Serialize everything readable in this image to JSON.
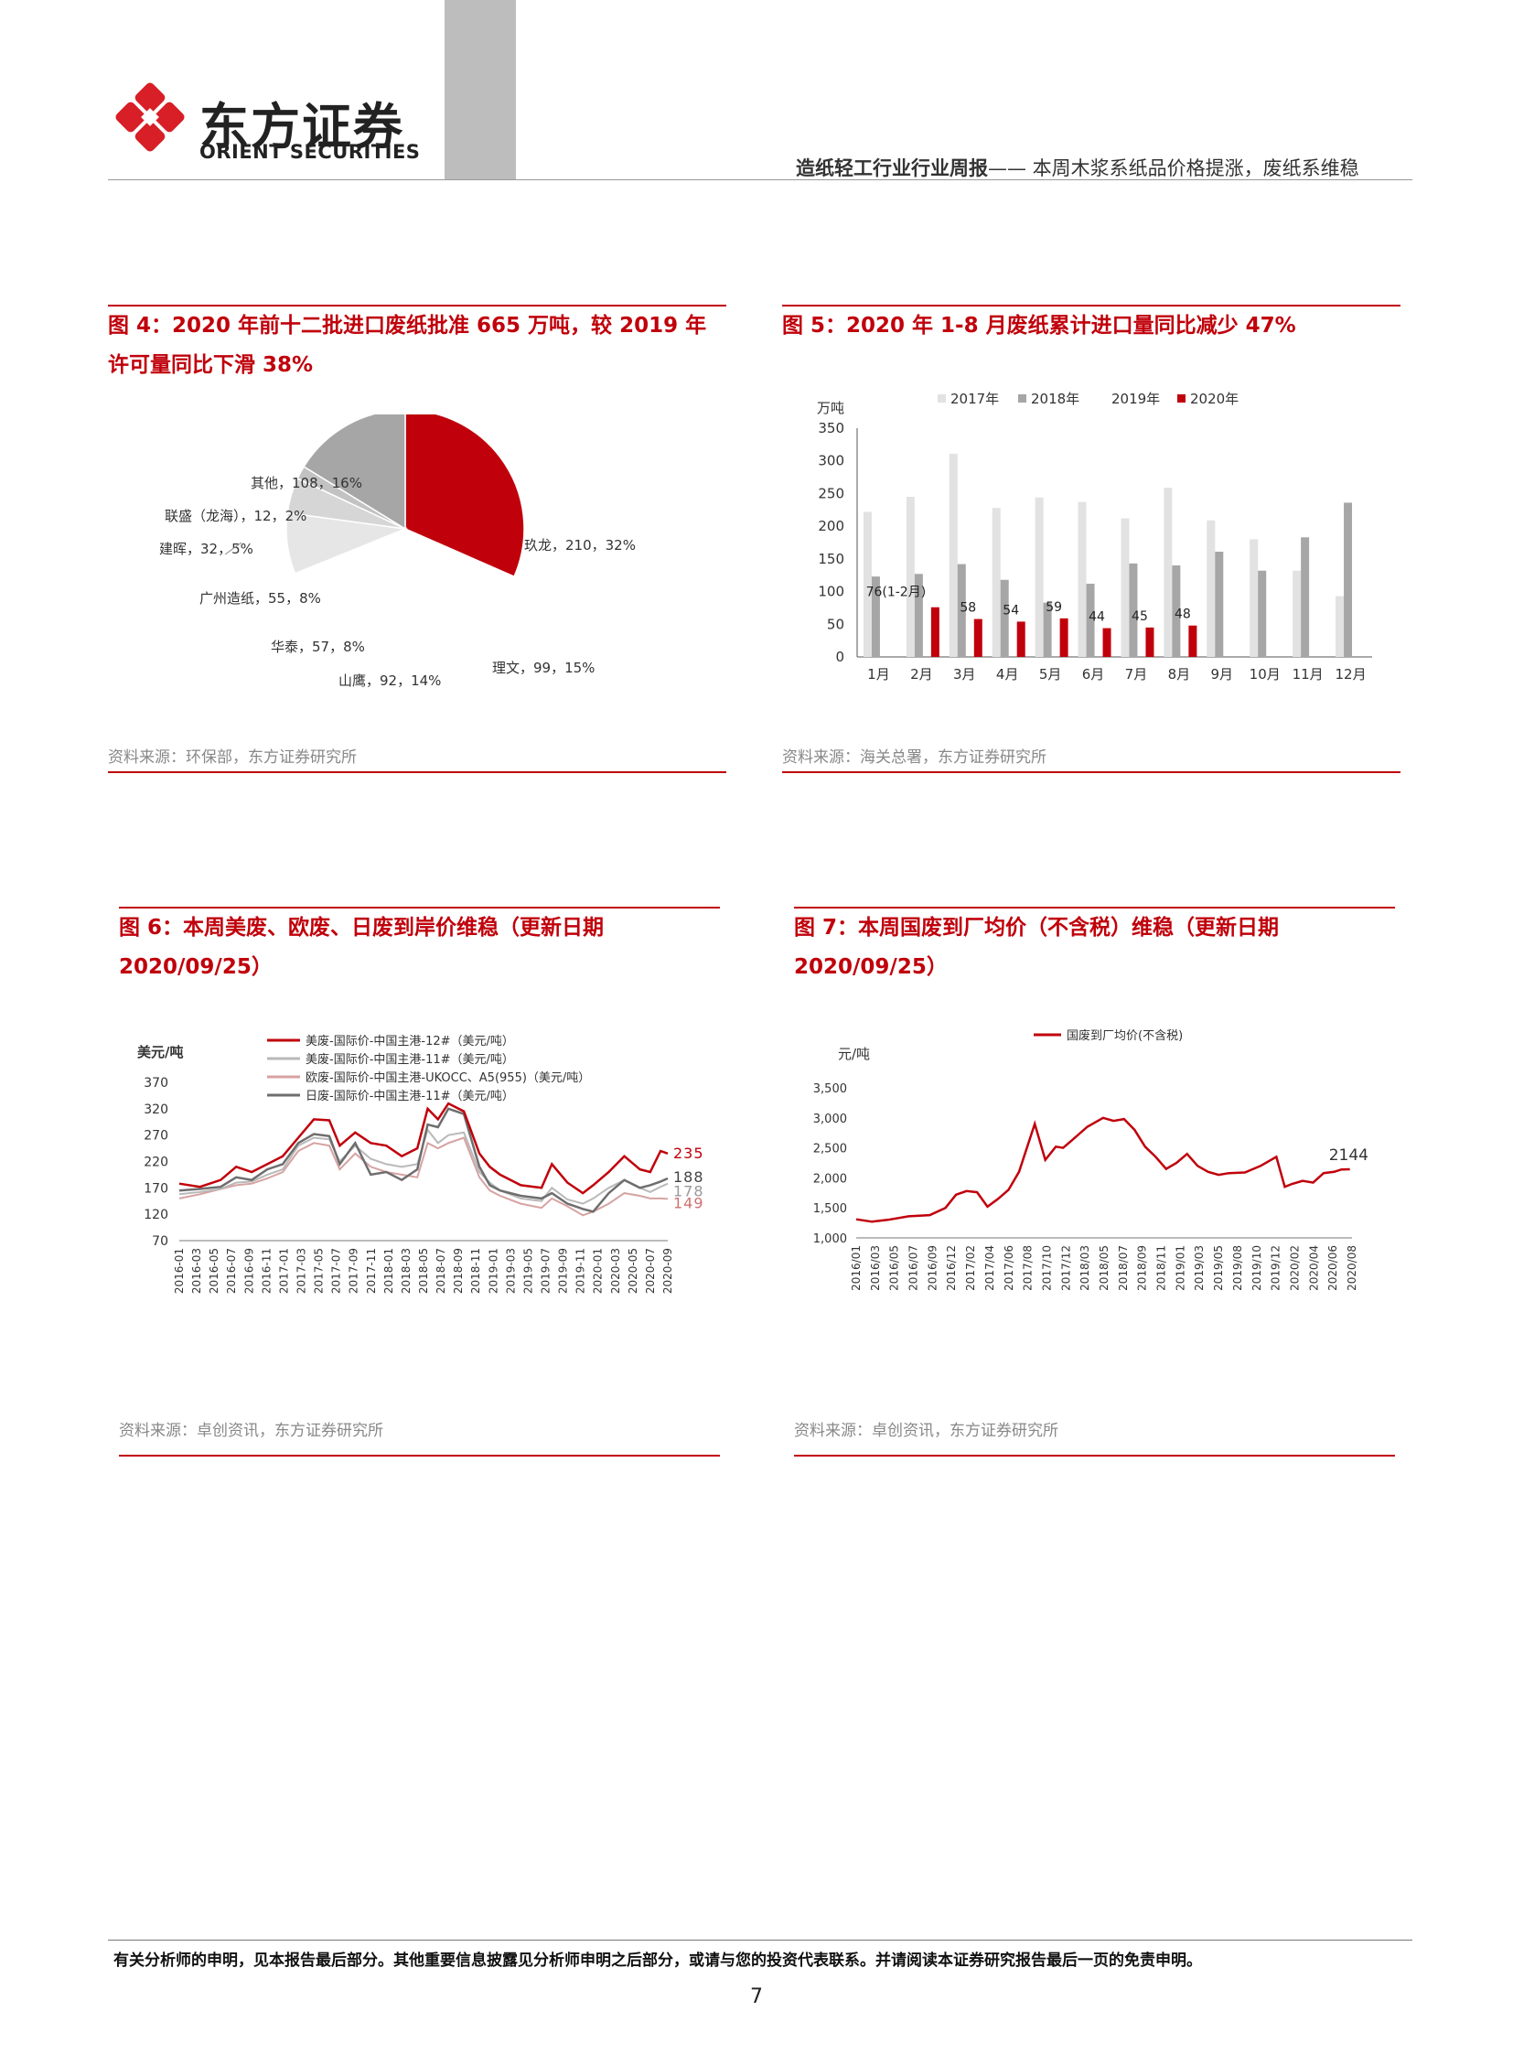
{
  "header": {
    "brand_cn": "东方证券",
    "brand_en": "ORIENT SECURITIES",
    "report_title": "造纸轻工行业行业周报",
    "report_subtitle": "—— 本周木浆系纸品价格提涨，废纸系维稳"
  },
  "figures": [
    {
      "title_line1": "图 4：2020 年前十二批进口废纸批准 665 万吨，较 2019 年",
      "title_line2": "许可量同比下滑 38%",
      "source": "资料来源：环保部，东方证券研究所"
    },
    {
      "title_line1": "图 5：2020 年 1-8 月废纸累计进口量同比减少 47%",
      "title_line2": "",
      "source": "资料来源：海关总署，东方证券研究所"
    },
    {
      "title_line1": "图 6：本周美废、欧废、日废到岸价维稳（更新日期",
      "title_line2": "2020/09/25）",
      "source": "资料来源：卓创资讯，东方证券研究所"
    },
    {
      "title_line1": "图 7：本周国废到厂均价（不含税）维稳（更新日期",
      "title_line2": "2020/09/25）",
      "source": "资料来源：卓创资讯，东方证券研究所"
    }
  ],
  "chart_data": [
    {
      "type": "pie",
      "slices": [
        {
          "label": "玖龙，210，32%",
          "value": 210,
          "pct": 32,
          "color": "#c0000b"
        },
        {
          "label": "理文，99，15%",
          "value": 99,
          "pct": 15,
          "color": "#ffffff"
        },
        {
          "label": "山鹰，92，14%",
          "value": 92,
          "pct": 14,
          "color": "#ffffff"
        },
        {
          "label": "华泰，57，8%",
          "value": 57,
          "pct": 8,
          "color": "#ffffff"
        },
        {
          "label": "广州造纸，55，8%",
          "value": 55,
          "pct": 8,
          "color": "#e6e6e6"
        },
        {
          "label": "建晖，32，5%",
          "value": 32,
          "pct": 5,
          "color": "#d6d6d6"
        },
        {
          "label": "联盛（龙海），12，2%",
          "value": 12,
          "pct": 2,
          "color": "#c2c2c2"
        },
        {
          "label": "其他，108，16%",
          "value": 108,
          "pct": 16,
          "color": "#a6a6a6"
        }
      ]
    },
    {
      "type": "bar",
      "ylabel": "万吨",
      "ylim": [
        0,
        350
      ],
      "yticks": [
        0,
        50,
        100,
        150,
        200,
        250,
        300,
        350
      ],
      "categories": [
        "1月",
        "2月",
        "3月",
        "4月",
        "5月",
        "6月",
        "7月",
        "8月",
        "9月",
        "10月",
        "11月",
        "12月"
      ],
      "series": [
        {
          "name": "2017年",
          "color": "#e2e2e2",
          "values": [
            222,
            245,
            311,
            228,
            244,
            237,
            212,
            259,
            209,
            180,
            132,
            93
          ]
        },
        {
          "name": "2018年",
          "color": "#a6a6a6",
          "values": [
            123,
            127,
            142,
            118,
            83,
            112,
            143,
            140,
            161,
            132,
            183,
            236
          ]
        },
        {
          "name": "2019年",
          "color": "#ffffff",
          "values": [
            null,
            null,
            null,
            null,
            null,
            null,
            null,
            null,
            null,
            null,
            null,
            null
          ]
        },
        {
          "name": "2020年",
          "color": "#c0000b",
          "values": [
            null,
            76,
            58,
            54,
            59,
            44,
            45,
            48,
            null,
            null,
            null,
            null
          ]
        }
      ],
      "data_labels": [
        "76(1-2月)",
        "58",
        "54",
        "59",
        "44",
        "45",
        "48"
      ]
    },
    {
      "type": "line",
      "ylabel": "美元/吨",
      "ylim": [
        70,
        370
      ],
      "yticks": [
        70,
        120,
        170,
        220,
        270,
        320,
        370
      ],
      "xticks": [
        "2016-01",
        "2016-03",
        "2016-05",
        "2016-07",
        "2016-09",
        "2016-11",
        "2017-01",
        "2017-03",
        "2017-05",
        "2017-07",
        "2017-09",
        "2017-11",
        "2018-01",
        "2018-03",
        "2018-05",
        "2018-07",
        "2018-09",
        "2018-11",
        "2019-01",
        "2019-03",
        "2019-05",
        "2019-07",
        "2019-09",
        "2019-11",
        "2020-01",
        "2020-03",
        "2020-05",
        "2020-07",
        "2020-09"
      ],
      "end_labels": [
        "235",
        "188",
        "178",
        "149"
      ],
      "series": [
        {
          "name": "美废-国际价-中国主港-12#（美元/吨）",
          "color": "#c0000b",
          "width": 2.5,
          "x": [
            2016.0,
            2016.2,
            2016.4,
            2016.55,
            2016.7,
            2016.85,
            2017.0,
            2017.15,
            2017.3,
            2017.45,
            2017.55,
            2017.7,
            2017.85,
            2018.0,
            2018.15,
            2018.3,
            2018.4,
            2018.5,
            2018.6,
            2018.75,
            2018.9,
            2019.0,
            2019.1,
            2019.3,
            2019.5,
            2019.6,
            2019.75,
            2019.9,
            2020.0,
            2020.15,
            2020.3,
            2020.45,
            2020.55,
            2020.65,
            2020.72
          ],
          "y": [
            178,
            172,
            185,
            210,
            200,
            215,
            230,
            265,
            300,
            298,
            250,
            275,
            255,
            250,
            230,
            245,
            320,
            300,
            330,
            315,
            235,
            210,
            195,
            175,
            170,
            215,
            180,
            160,
            175,
            200,
            230,
            205,
            200,
            240,
            235
          ]
        },
        {
          "name": "美废-国际价-中国主港-11#（美元/吨）",
          "color": "#b9b9b9",
          "width": 2,
          "x": [
            2016.0,
            2016.2,
            2016.4,
            2016.55,
            2016.7,
            2016.85,
            2017.0,
            2017.15,
            2017.3,
            2017.45,
            2017.55,
            2017.7,
            2017.85,
            2018.0,
            2018.15,
            2018.3,
            2018.4,
            2018.5,
            2018.6,
            2018.75,
            2018.9,
            2019.0,
            2019.1,
            2019.3,
            2019.5,
            2019.6,
            2019.75,
            2019.9,
            2020.0,
            2020.15,
            2020.3,
            2020.45,
            2020.55,
            2020.65,
            2020.72
          ],
          "y": [
            158,
            162,
            168,
            180,
            182,
            195,
            205,
            250,
            265,
            262,
            220,
            250,
            225,
            215,
            210,
            215,
            280,
            255,
            270,
            275,
            200,
            180,
            165,
            150,
            145,
            170,
            148,
            140,
            150,
            170,
            185,
            170,
            162,
            172,
            178
          ]
        },
        {
          "name": "欧废-国际价-中国主港-UKOCC、A5(955)（美元/吨）",
          "color": "#d7a2a2",
          "width": 2,
          "x": [
            2016.0,
            2016.2,
            2016.4,
            2016.55,
            2016.7,
            2016.85,
            2017.0,
            2017.15,
            2017.3,
            2017.45,
            2017.55,
            2017.7,
            2017.85,
            2018.0,
            2018.15,
            2018.3,
            2018.4,
            2018.5,
            2018.6,
            2018.75,
            2018.9,
            2019.0,
            2019.1,
            2019.3,
            2019.5,
            2019.6,
            2019.75,
            2019.9,
            2020.0,
            2020.15,
            2020.3,
            2020.45,
            2020.55,
            2020.65,
            2020.72
          ],
          "y": [
            150,
            158,
            168,
            175,
            178,
            188,
            200,
            240,
            255,
            250,
            205,
            235,
            210,
            200,
            195,
            190,
            255,
            245,
            255,
            265,
            190,
            165,
            155,
            140,
            132,
            150,
            135,
            118,
            125,
            140,
            160,
            155,
            150,
            150,
            149
          ]
        },
        {
          "name": "日废-国际价-中国主港-11#（美元/吨）",
          "color": "#6e6e6e",
          "width": 2.5,
          "x": [
            2016.0,
            2016.2,
            2016.4,
            2016.55,
            2016.7,
            2016.85,
            2017.0,
            2017.15,
            2017.3,
            2017.45,
            2017.55,
            2017.7,
            2017.85,
            2018.0,
            2018.15,
            2018.3,
            2018.4,
            2018.5,
            2018.6,
            2018.75,
            2018.9,
            2019.0,
            2019.1,
            2019.3,
            2019.5,
            2019.6,
            2019.75,
            2019.9,
            2020.0,
            2020.15,
            2020.3,
            2020.45,
            2020.55,
            2020.65,
            2020.72
          ],
          "y": [
            165,
            168,
            172,
            190,
            185,
            205,
            215,
            255,
            272,
            268,
            215,
            255,
            195,
            200,
            185,
            205,
            290,
            285,
            320,
            310,
            210,
            175,
            165,
            155,
            150,
            160,
            140,
            130,
            125,
            160,
            185,
            170,
            175,
            182,
            188
          ]
        }
      ]
    },
    {
      "type": "line",
      "ylabel": "元/吨",
      "ylim": [
        1000,
        3500
      ],
      "yticks": [
        "1,000",
        "1,500",
        "2,000",
        "2,500",
        "3,000",
        "3,500"
      ],
      "xticks": [
        "2016/01",
        "2016/03",
        "2016/05",
        "2016/07",
        "2016/09",
        "2016/12",
        "2017/02",
        "2017/04",
        "2017/06",
        "2017/08",
        "2017/10",
        "2017/12",
        "2018/03",
        "2018/05",
        "2018/07",
        "2018/09",
        "2018/11",
        "2019/01",
        "2019/03",
        "2019/05",
        "2019/08",
        "2019/10",
        "2019/12",
        "2020/02",
        "2020/04",
        "2020/06",
        "2020/08"
      ],
      "end_label": "2144",
      "series": [
        {
          "name": "国废到厂均价(不含税)",
          "color": "#c0000b",
          "x": [
            2016.0,
            2016.15,
            2016.3,
            2016.5,
            2016.7,
            2016.85,
            2016.95,
            2017.05,
            2017.15,
            2017.25,
            2017.35,
            2017.45,
            2017.55,
            2017.7,
            2017.8,
            2017.9,
            2017.97,
            2018.05,
            2018.2,
            2018.35,
            2018.45,
            2018.55,
            2018.65,
            2018.75,
            2018.85,
            2018.95,
            2019.05,
            2019.15,
            2019.25,
            2019.35,
            2019.45,
            2019.55,
            2019.7,
            2019.85,
            2020.0,
            2020.08,
            2020.15,
            2020.25,
            2020.35,
            2020.45,
            2020.55,
            2020.62,
            2020.7
          ],
          "y": [
            1310,
            1270,
            1300,
            1360,
            1380,
            1500,
            1720,
            1780,
            1760,
            1520,
            1650,
            1800,
            2100,
            2900,
            2300,
            2520,
            2500,
            2620,
            2850,
            3000,
            2950,
            2980,
            2800,
            2520,
            2350,
            2150,
            2250,
            2400,
            2200,
            2100,
            2050,
            2080,
            2090,
            2200,
            2350,
            1850,
            1900,
            1950,
            1920,
            2080,
            2100,
            2140,
            2144
          ]
        }
      ]
    }
  ],
  "footer": {
    "disclaimer": "有关分析师的申明，见本报告最后部分。其他重要信息披露见分析师申明之后部分，或请与您的投资代表联系。并请阅读本证券研究报告最后一页的免责申明。",
    "page_number": "7"
  }
}
